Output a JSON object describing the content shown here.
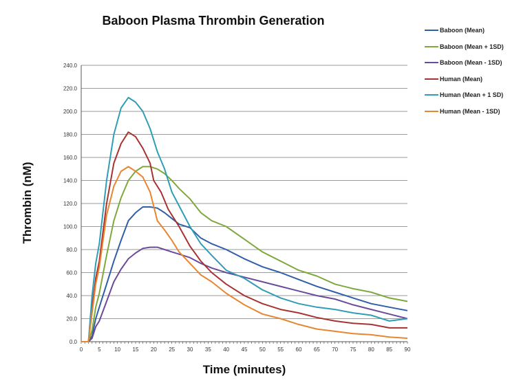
{
  "chart_data": {
    "type": "line",
    "title": "Baboon Plasma Thrombin Generation",
    "xlabel": "Time (minutes)",
    "ylabel": "Thrombin (nM)",
    "xlim": [
      0,
      90
    ],
    "ylim": [
      0,
      240
    ],
    "xticks": [
      "0",
      "5",
      "10",
      "15",
      "20",
      "25",
      "30",
      "35",
      "40",
      "45",
      "50",
      "55",
      "60",
      "65",
      "70",
      "75",
      "80",
      "85",
      "90"
    ],
    "yticks": [
      "0.0",
      "20.0",
      "40.0",
      "60.0",
      "80.0",
      "100.0",
      "120.0",
      "140.0",
      "160.0",
      "180.0",
      "200.0",
      "220.0",
      "240.0"
    ],
    "grid": "horizontal",
    "legend": "right",
    "series": [
      {
        "name": "Baboon (Mean)",
        "color": "#2f5ea8",
        "x": [
          0,
          2,
          3,
          4,
          5,
          7,
          9,
          11,
          13,
          15,
          17,
          19,
          21,
          23,
          25,
          27,
          30,
          33,
          36,
          40,
          45,
          50,
          55,
          60,
          65,
          70,
          75,
          80,
          85,
          90
        ],
        "y": [
          0,
          0,
          5,
          20,
          30,
          50,
          70,
          88,
          105,
          112,
          117,
          117,
          116,
          112,
          107,
          102,
          99,
          90,
          85,
          80,
          72,
          65,
          60,
          54,
          48,
          43,
          38,
          33,
          30,
          27
        ]
      },
      {
        "name": "Baboon (Mean + 1SD)",
        "color": "#7fa83c",
        "x": [
          0,
          2,
          3,
          4,
          5,
          7,
          9,
          11,
          13,
          15,
          17,
          19,
          21,
          23,
          25,
          27,
          30,
          33,
          36,
          40,
          45,
          50,
          55,
          60,
          65,
          70,
          75,
          80,
          85,
          90
        ],
        "y": [
          0,
          0,
          10,
          30,
          42,
          75,
          105,
          125,
          140,
          148,
          152,
          152,
          150,
          146,
          140,
          133,
          124,
          112,
          105,
          100,
          89,
          78,
          70,
          62,
          57,
          50,
          46,
          43,
          38,
          35
        ]
      },
      {
        "name": "Baboon (Mean - 1SD)",
        "color": "#6a4a9a",
        "x": [
          0,
          2,
          3,
          4,
          5,
          7,
          9,
          11,
          13,
          15,
          17,
          19,
          21,
          23,
          25,
          27,
          30,
          33,
          36,
          40,
          45,
          50,
          55,
          60,
          65,
          70,
          75,
          80,
          85,
          90
        ],
        "y": [
          0,
          0,
          3,
          13,
          18,
          35,
          52,
          63,
          72,
          77,
          81,
          82,
          82,
          80,
          78,
          76,
          73,
          68,
          64,
          60,
          56,
          52,
          48,
          44,
          40,
          37,
          32,
          28,
          24,
          20
        ]
      },
      {
        "name": "Human (Mean)",
        "color": "#a83232",
        "x": [
          0,
          2,
          3,
          4,
          5,
          7,
          9,
          11,
          13,
          15,
          17,
          19,
          20,
          22,
          24,
          27,
          30,
          33,
          36,
          40,
          45,
          50,
          55,
          60,
          65,
          70,
          75,
          80,
          85,
          90
        ],
        "y": [
          0,
          0,
          30,
          55,
          70,
          120,
          155,
          172,
          182,
          178,
          168,
          155,
          140,
          130,
          115,
          100,
          83,
          70,
          60,
          50,
          40,
          33,
          28,
          25,
          21,
          18,
          16,
          15,
          12,
          12
        ]
      },
      {
        "name": "Human (Mean + 1 SD)",
        "color": "#2f9db5",
        "x": [
          0,
          2,
          3,
          4,
          5,
          7,
          9,
          11,
          13,
          15,
          17,
          19,
          21,
          23,
          25,
          27,
          30,
          33,
          36,
          40,
          45,
          50,
          55,
          60,
          65,
          70,
          75,
          80,
          85,
          90
        ],
        "y": [
          0,
          0,
          40,
          68,
          85,
          140,
          180,
          203,
          212,
          208,
          200,
          185,
          165,
          150,
          130,
          118,
          100,
          85,
          75,
          62,
          55,
          45,
          38,
          33,
          30,
          28,
          25,
          23,
          18,
          20
        ]
      },
      {
        "name": "Human (Mean - 1SD)",
        "color": "#e8852f",
        "x": [
          0,
          2,
          3,
          4,
          5,
          7,
          9,
          11,
          13,
          15,
          17,
          19,
          21,
          23,
          25,
          27,
          30,
          33,
          36,
          40,
          45,
          50,
          55,
          60,
          65,
          70,
          75,
          80,
          85,
          90
        ],
        "y": [
          0,
          0,
          25,
          50,
          65,
          110,
          135,
          148,
          152,
          148,
          143,
          130,
          105,
          97,
          88,
          78,
          68,
          58,
          52,
          42,
          32,
          24,
          20,
          15,
          11,
          9,
          7,
          6,
          4,
          3
        ]
      }
    ]
  }
}
